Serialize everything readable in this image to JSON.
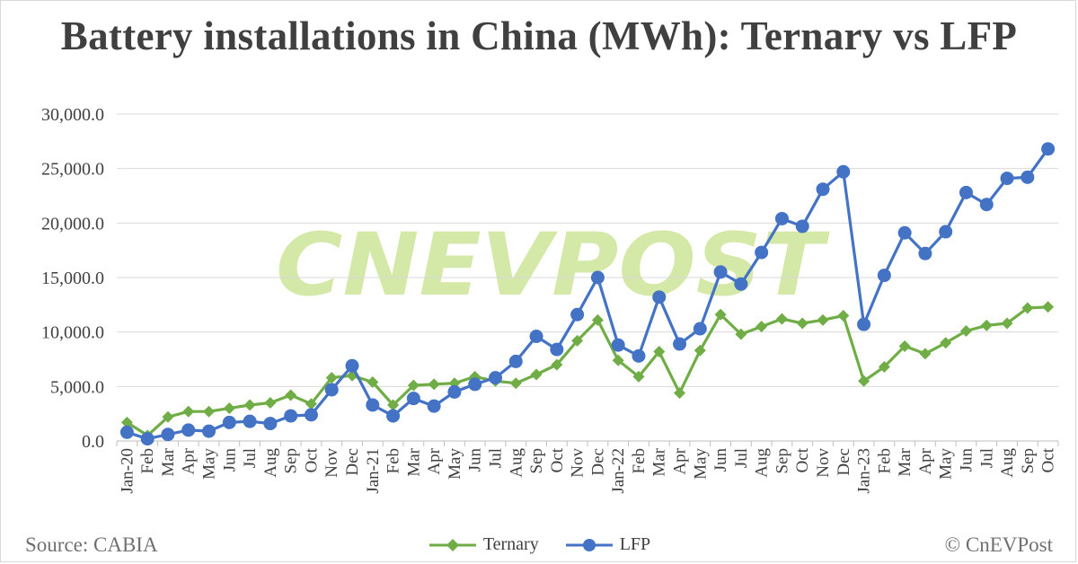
{
  "title": "Battery installations in China (MWh): Ternary vs LFP",
  "source": "Source: CABIA",
  "copyright": "© CnEVPost",
  "watermark": "CNEVPOST",
  "colors": {
    "ternary": "#70ad47",
    "lfp": "#4472c4",
    "grid": "#d9d9d9",
    "text": "#404040",
    "watermark": "#c6e08a"
  },
  "chart_data": {
    "type": "line",
    "title": "Battery installations in China (MWh): Ternary vs LFP",
    "xlabel": "",
    "ylabel": "",
    "ylim": [
      0,
      30000
    ],
    "yticks": [
      "0.0",
      "5,000.0",
      "10,000.0",
      "15,000.0",
      "20,000.0",
      "25,000.0",
      "30,000.0"
    ],
    "grid": true,
    "legend_position": "bottom",
    "categories": [
      "Jan-20",
      "Feb",
      "Mar",
      "Apr",
      "May",
      "Jun",
      "Jul",
      "Aug",
      "Sep",
      "Oct",
      "Nov",
      "Dec",
      "Jan-21",
      "Feb",
      "Mar",
      "Apr",
      "May",
      "Jun",
      "Jul",
      "Aug",
      "Sep",
      "Oct",
      "Nov",
      "Dec",
      "Jan-22",
      "Feb",
      "Mar",
      "Apr",
      "May",
      "Jun",
      "Jul",
      "Aug",
      "Sep",
      "Oct",
      "Nov",
      "Dec",
      "Jan-23",
      "Feb",
      "Mar",
      "Apr",
      "May",
      "Jun",
      "Jul",
      "Aug",
      "Sep",
      "Oct"
    ],
    "series": [
      {
        "name": "Ternary",
        "marker": "diamond",
        "values": [
          1700,
          500,
          2200,
          2700,
          2700,
          3000,
          3300,
          3500,
          4200,
          3400,
          5800,
          6000,
          5400,
          3300,
          5100,
          5200,
          5300,
          5900,
          5500,
          5300,
          6100,
          7000,
          9200,
          11100,
          7400,
          5900,
          8200,
          4400,
          8300,
          11600,
          9800,
          10500,
          11200,
          10800,
          11100,
          11500,
          5500,
          6800,
          8700,
          8000,
          9000,
          10100,
          10600,
          10800,
          12200,
          12300
        ]
      },
      {
        "name": "LFP",
        "marker": "circle",
        "values": [
          800,
          200,
          600,
          1000,
          900,
          1700,
          1800,
          1600,
          2300,
          2400,
          4700,
          6900,
          3300,
          2300,
          3900,
          3200,
          4500,
          5200,
          5800,
          7300,
          9600,
          8400,
          11600,
          15000,
          8800,
          7800,
          13200,
          8900,
          10300,
          15500,
          14400,
          17300,
          20400,
          19700,
          23100,
          24700,
          10700,
          15200,
          19100,
          17200,
          19200,
          22800,
          21700,
          24100,
          24200,
          26800
        ]
      }
    ]
  }
}
